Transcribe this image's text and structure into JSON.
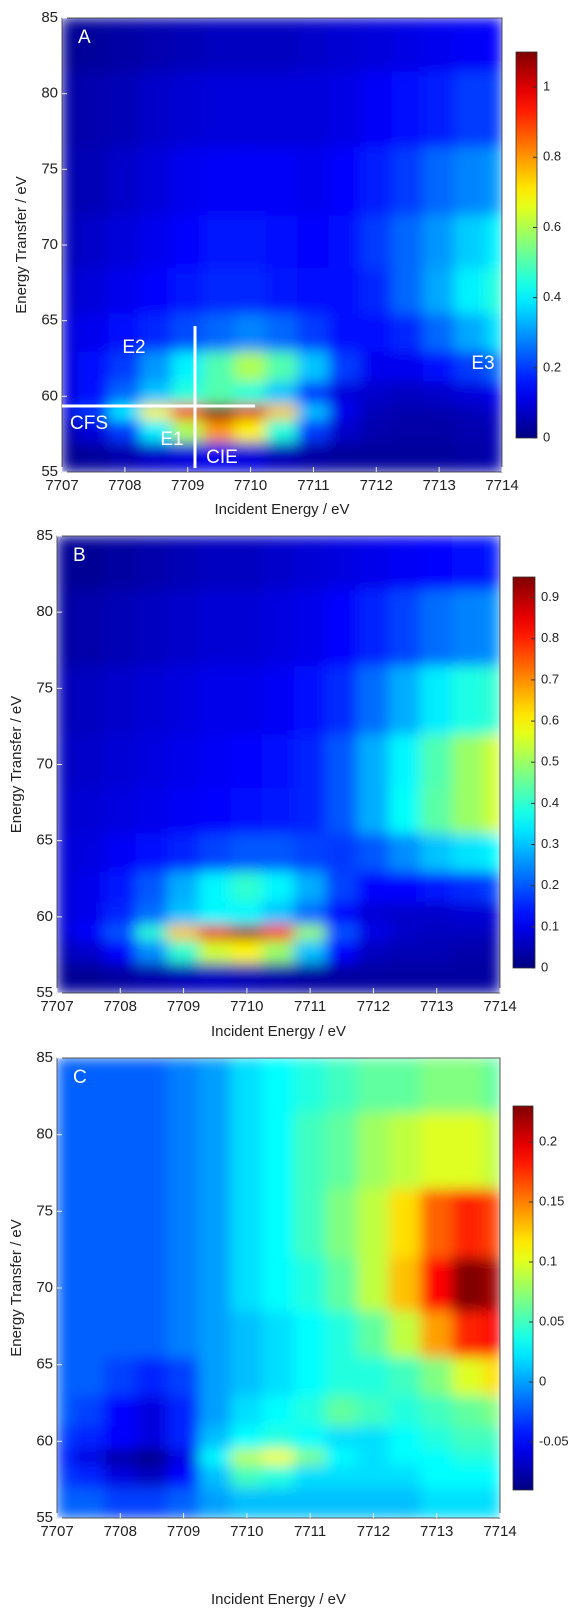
{
  "chart_data": [
    {
      "type": "heatmap",
      "panel": "A",
      "xlabel": "Incident Energy / eV",
      "ylabel": "Energy Transfer / eV",
      "annotations": [
        "E1",
        "E2",
        "E3",
        "CFS",
        "CIE"
      ],
      "colormap": "jet",
      "x": [
        7707,
        7707.5,
        7708,
        7708.5,
        7709,
        7709.5,
        7710,
        7710.5,
        7711,
        7711.5,
        7712,
        7712.5,
        7713,
        7713.5,
        7714
      ],
      "y": [
        56,
        58,
        59,
        60,
        62,
        64,
        67,
        70,
        74,
        79,
        84
      ],
      "z": [
        [
          0.02,
          0.03,
          0.05,
          0.08,
          0.1,
          0.12,
          0.1,
          0.06,
          0.04,
          0.03,
          0.03,
          0.03,
          0.03,
          0.04,
          0.05
        ],
        [
          0.05,
          0.1,
          0.2,
          0.4,
          0.6,
          0.8,
          0.7,
          0.45,
          0.2,
          0.08,
          0.05,
          0.04,
          0.04,
          0.05,
          0.06
        ],
        [
          0.1,
          0.2,
          0.4,
          0.7,
          0.95,
          1.1,
          1.0,
          0.75,
          0.35,
          0.12,
          0.06,
          0.05,
          0.05,
          0.06,
          0.08
        ],
        [
          0.1,
          0.15,
          0.25,
          0.35,
          0.45,
          0.5,
          0.45,
          0.35,
          0.2,
          0.1,
          0.08,
          0.07,
          0.08,
          0.1,
          0.12
        ],
        [
          0.1,
          0.15,
          0.2,
          0.3,
          0.4,
          0.5,
          0.6,
          0.5,
          0.35,
          0.2,
          0.12,
          0.12,
          0.15,
          0.2,
          0.25
        ],
        [
          0.1,
          0.12,
          0.15,
          0.18,
          0.22,
          0.25,
          0.28,
          0.25,
          0.2,
          0.15,
          0.15,
          0.18,
          0.25,
          0.32,
          0.38
        ],
        [
          0.08,
          0.1,
          0.12,
          0.14,
          0.16,
          0.18,
          0.18,
          0.16,
          0.15,
          0.15,
          0.18,
          0.25,
          0.32,
          0.4,
          0.45
        ],
        [
          0.06,
          0.08,
          0.1,
          0.12,
          0.14,
          0.16,
          0.16,
          0.15,
          0.14,
          0.15,
          0.2,
          0.25,
          0.3,
          0.36,
          0.4
        ],
        [
          0.05,
          0.06,
          0.08,
          0.1,
          0.12,
          0.13,
          0.13,
          0.13,
          0.12,
          0.14,
          0.17,
          0.2,
          0.25,
          0.28,
          0.3
        ],
        [
          0.04,
          0.05,
          0.06,
          0.08,
          0.09,
          0.1,
          0.1,
          0.1,
          0.1,
          0.11,
          0.13,
          0.15,
          0.17,
          0.2,
          0.2
        ],
        [
          0.02,
          0.03,
          0.04,
          0.05,
          0.06,
          0.07,
          0.07,
          0.07,
          0.08,
          0.09,
          0.1,
          0.11,
          0.12,
          0.13,
          0.14
        ]
      ],
      "xlim": [
        7707,
        7714
      ],
      "ylim": [
        55,
        85
      ],
      "xticks": [
        7707,
        7708,
        7709,
        7710,
        7711,
        7712,
        7713,
        7714
      ],
      "yticks": [
        55,
        60,
        65,
        70,
        75,
        80,
        85
      ],
      "zlim": [
        0,
        1.1
      ],
      "zticks": [
        0,
        0.2,
        0.4,
        0.6,
        0.8,
        1
      ]
    },
    {
      "type": "heatmap",
      "panel": "B",
      "xlabel": "Incident Energy / eV",
      "ylabel": "Energy Transfer / eV",
      "colormap": "jet",
      "x": [
        7707,
        7707.5,
        7708,
        7708.5,
        7709,
        7709.5,
        7710,
        7710.5,
        7711,
        7711.5,
        7712,
        7712.5,
        7713,
        7713.5,
        7714
      ],
      "y": [
        56,
        58,
        59,
        60,
        62,
        64,
        67,
        70,
        74,
        79,
        84
      ],
      "z": [
        [
          0.02,
          0.02,
          0.03,
          0.04,
          0.05,
          0.06,
          0.05,
          0.04,
          0.03,
          0.03,
          0.03,
          0.03,
          0.03,
          0.03,
          0.03
        ],
        [
          0.05,
          0.07,
          0.12,
          0.25,
          0.4,
          0.55,
          0.6,
          0.5,
          0.3,
          0.12,
          0.06,
          0.05,
          0.05,
          0.04,
          0.04
        ],
        [
          0.08,
          0.12,
          0.2,
          0.4,
          0.65,
          0.85,
          0.92,
          0.8,
          0.5,
          0.2,
          0.1,
          0.07,
          0.06,
          0.06,
          0.06
        ],
        [
          0.08,
          0.1,
          0.15,
          0.22,
          0.3,
          0.35,
          0.35,
          0.3,
          0.22,
          0.12,
          0.08,
          0.07,
          0.07,
          0.08,
          0.08
        ],
        [
          0.08,
          0.1,
          0.14,
          0.2,
          0.28,
          0.35,
          0.4,
          0.35,
          0.28,
          0.18,
          0.12,
          0.12,
          0.14,
          0.16,
          0.18
        ],
        [
          0.08,
          0.09,
          0.11,
          0.13,
          0.15,
          0.18,
          0.2,
          0.2,
          0.18,
          0.17,
          0.2,
          0.25,
          0.3,
          0.33,
          0.35
        ],
        [
          0.07,
          0.08,
          0.09,
          0.1,
          0.11,
          0.12,
          0.13,
          0.14,
          0.15,
          0.2,
          0.28,
          0.36,
          0.44,
          0.5,
          0.55
        ],
        [
          0.06,
          0.07,
          0.08,
          0.09,
          0.1,
          0.11,
          0.12,
          0.13,
          0.15,
          0.2,
          0.28,
          0.35,
          0.43,
          0.5,
          0.55
        ],
        [
          0.05,
          0.06,
          0.07,
          0.08,
          0.09,
          0.1,
          0.1,
          0.11,
          0.13,
          0.16,
          0.22,
          0.28,
          0.34,
          0.38,
          0.4
        ],
        [
          0.03,
          0.04,
          0.05,
          0.06,
          0.07,
          0.08,
          0.08,
          0.09,
          0.1,
          0.12,
          0.15,
          0.18,
          0.22,
          0.24,
          0.25
        ],
        [
          0.02,
          0.02,
          0.03,
          0.04,
          0.05,
          0.06,
          0.06,
          0.07,
          0.08,
          0.09,
          0.1,
          0.11,
          0.12,
          0.13,
          0.14
        ]
      ],
      "xlim": [
        7707,
        7714
      ],
      "ylim": [
        55,
        85
      ],
      "xticks": [
        7707,
        7708,
        7709,
        7710,
        7711,
        7712,
        7713,
        7714
      ],
      "yticks": [
        55,
        60,
        65,
        70,
        75,
        80,
        85
      ],
      "zlim": [
        0,
        0.95
      ],
      "zticks": [
        0,
        0.1,
        0.2,
        0.3,
        0.4,
        0.5,
        0.6,
        0.7,
        0.8,
        0.9
      ]
    },
    {
      "type": "heatmap",
      "panel": "C",
      "xlabel": "Incident Energy / eV",
      "ylabel": "Energy Transfer / eV",
      "colormap": "jet",
      "x": [
        7707,
        7707.5,
        7708,
        7708.5,
        7709,
        7709.5,
        7710,
        7710.5,
        7711,
        7711.5,
        7712,
        7712.5,
        7713,
        7713.5,
        7714
      ],
      "y": [
        56,
        58,
        59,
        60,
        62,
        64,
        67,
        70,
        74,
        79,
        84
      ],
      "z": [
        [
          -0.02,
          -0.02,
          -0.03,
          -0.03,
          -0.02,
          0,
          0.01,
          0.01,
          0.01,
          0.01,
          0.01,
          0.01,
          0.02,
          0.02,
          0.02
        ],
        [
          -0.03,
          -0.04,
          -0.06,
          -0.07,
          -0.05,
          0.01,
          0.05,
          0.04,
          0.02,
          0.02,
          0.02,
          0.02,
          0.03,
          0.03,
          0.03
        ],
        [
          -0.04,
          -0.06,
          -0.08,
          -0.09,
          -0.06,
          0.03,
          0.09,
          0.11,
          0.07,
          0.03,
          0.02,
          0.03,
          0.03,
          0.04,
          0.04
        ],
        [
          -0.03,
          -0.04,
          -0.05,
          -0.06,
          -0.04,
          0.01,
          0.03,
          0.04,
          0.03,
          0.02,
          0.02,
          0.03,
          0.04,
          0.05,
          0.05
        ],
        [
          -0.02,
          -0.03,
          -0.05,
          -0.06,
          -0.04,
          0,
          0.02,
          0.03,
          0.04,
          0.06,
          0.05,
          0.04,
          0.05,
          0.06,
          0.07
        ],
        [
          -0.02,
          -0.02,
          -0.03,
          -0.04,
          -0.03,
          0,
          0.01,
          0.02,
          0.03,
          0.04,
          0.04,
          0.05,
          0.07,
          0.1,
          0.12
        ],
        [
          -0.02,
          -0.02,
          -0.02,
          -0.02,
          -0.01,
          0,
          0.01,
          0.02,
          0.03,
          0.04,
          0.06,
          0.09,
          0.14,
          0.18,
          0.19
        ],
        [
          -0.02,
          -0.02,
          -0.02,
          -0.02,
          -0.01,
          0,
          0.02,
          0.03,
          0.04,
          0.06,
          0.09,
          0.13,
          0.19,
          0.23,
          0.22
        ],
        [
          -0.02,
          -0.02,
          -0.02,
          -0.02,
          -0.01,
          0,
          0.02,
          0.03,
          0.05,
          0.07,
          0.09,
          0.12,
          0.16,
          0.18,
          0.17
        ],
        [
          -0.02,
          -0.02,
          -0.02,
          -0.02,
          -0.01,
          0,
          0.02,
          0.03,
          0.05,
          0.06,
          0.08,
          0.09,
          0.1,
          0.1,
          0.09
        ],
        [
          -0.02,
          -0.02,
          -0.02,
          -0.02,
          -0.01,
          0,
          0.02,
          0.03,
          0.04,
          0.05,
          0.06,
          0.06,
          0.07,
          0.07,
          0.06
        ]
      ],
      "xlim": [
        7707,
        7714
      ],
      "ylim": [
        55,
        85
      ],
      "xticks": [
        7707,
        7708,
        7709,
        7710,
        7711,
        7712,
        7713,
        7714
      ],
      "yticks": [
        55,
        60,
        65,
        70,
        75,
        80,
        85
      ],
      "zlim": [
        -0.09,
        0.23
      ],
      "zticks": [
        -0.05,
        0,
        0.05,
        0.1,
        0.15,
        0.2
      ]
    }
  ]
}
